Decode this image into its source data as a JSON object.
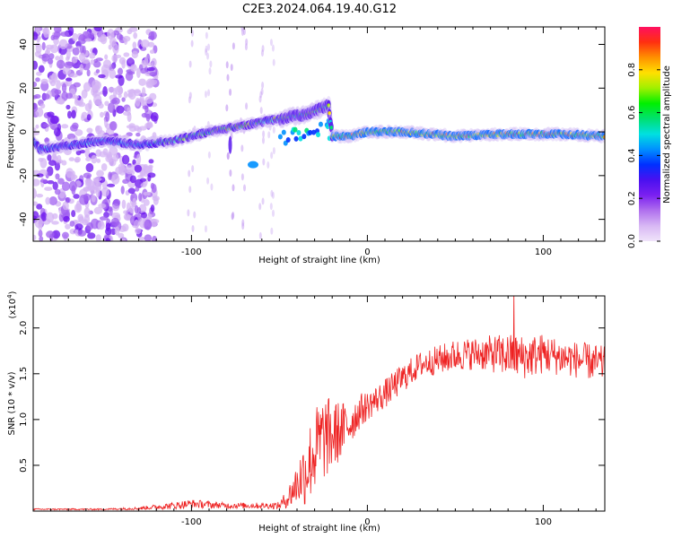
{
  "title": "C2E3.2024.064.19.40.G12",
  "chart_data": [
    {
      "type": "heatmap",
      "xlabel": "Height of straight line (km)",
      "ylabel": "Frequency (Hz)",
      "xlim": [
        -190,
        135
      ],
      "ylim": [
        -50,
        48
      ],
      "xticks": [
        -100,
        0,
        100
      ],
      "yticks": [
        -40,
        -20,
        0,
        20,
        40
      ],
      "colorbar": {
        "label": "Normalized spectral amplitude",
        "range": [
          0.0,
          1.0
        ],
        "ticks": [
          0.0,
          0.2,
          0.4,
          0.6,
          0.8
        ],
        "colors": [
          "#f0e4fa",
          "#d8b8f4",
          "#b070ee",
          "#7b20f0",
          "#4a10f0",
          "#0030ff",
          "#0090ff",
          "#00e0e0",
          "#00e070",
          "#00f000",
          "#a0f000",
          "#ffe000",
          "#ff9000",
          "#ff3010",
          "#ff1060"
        ]
      },
      "noise_region": {
        "x": [
          -190,
          -120
        ],
        "y": [
          -50,
          48
        ]
      },
      "ridge": {
        "description_points_x": [
          -190,
          -186,
          -150,
          -130,
          -110,
          -90,
          -70,
          -50,
          -35,
          -22,
          -20,
          -10,
          0,
          20,
          50,
          80,
          110,
          135
        ],
        "description_points_y": [
          -4,
          -8,
          -4,
          -6,
          -4,
          0,
          3,
          6,
          8,
          12,
          -2,
          -2,
          0,
          0,
          -2,
          -1,
          -1,
          -2
        ]
      }
    },
    {
      "type": "line",
      "xlabel": "Height of straight line (km)",
      "ylabel": "SNR (10 * v/v)",
      "yscale_label": "(x10",
      "yscale_exp": "4",
      "xlim": [
        -190,
        135
      ],
      "ylim": [
        0,
        2.35
      ],
      "xticks": [
        -100,
        0,
        100
      ],
      "yticks": [
        0.5,
        1.0,
        1.5,
        2.0
      ],
      "ytick_labels": [
        "0.5",
        "1.0",
        "1.5",
        "2.0"
      ],
      "series": [
        {
          "color": "#ee2222",
          "x": [
            -190,
            -170,
            -150,
            -130,
            -110,
            -100,
            -90,
            -80,
            -70,
            -60,
            -50,
            -45,
            -40,
            -35,
            -30,
            -25,
            -20,
            -15,
            -10,
            -5,
            0,
            10,
            20,
            30,
            40,
            50,
            60,
            70,
            80,
            90,
            100,
            110,
            120,
            130,
            135
          ],
          "y": [
            0.02,
            0.02,
            0.02,
            0.03,
            0.06,
            0.08,
            0.07,
            0.06,
            0.06,
            0.06,
            0.06,
            0.15,
            0.3,
            0.45,
            0.65,
            0.8,
            0.82,
            0.88,
            0.95,
            1.08,
            1.15,
            1.28,
            1.45,
            1.6,
            1.65,
            1.7,
            1.72,
            1.72,
            1.7,
            1.68,
            1.72,
            1.68,
            1.65,
            1.62,
            1.6
          ],
          "noise_amplitude": [
            0.01,
            0.01,
            0.01,
            0.02,
            0.05,
            0.06,
            0.05,
            0.04,
            0.04,
            0.04,
            0.05,
            0.15,
            0.3,
            0.5,
            0.6,
            0.6,
            0.5,
            0.4,
            0.3,
            0.25,
            0.2,
            0.2,
            0.2,
            0.18,
            0.2,
            0.22,
            0.22,
            0.25,
            0.3,
            0.3,
            0.28,
            0.25,
            0.25,
            0.25,
            0.25
          ],
          "peak_value": 2.4
        }
      ]
    }
  ]
}
